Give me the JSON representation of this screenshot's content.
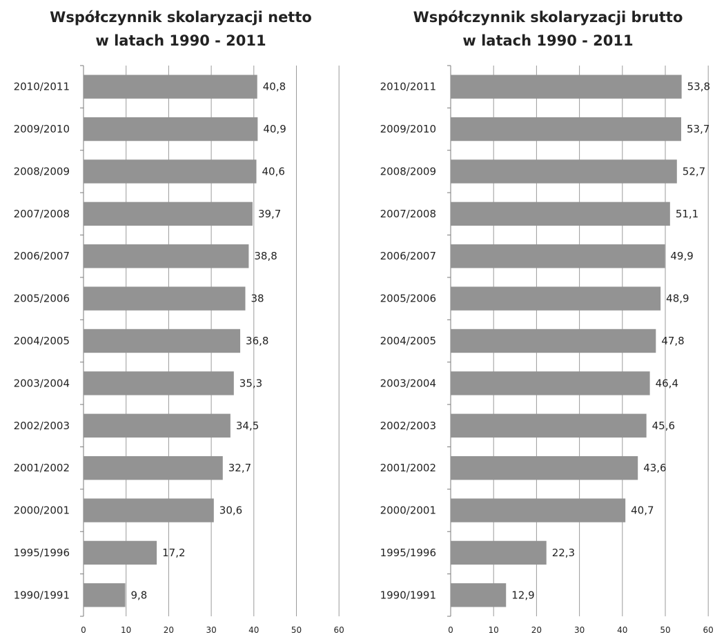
{
  "colors": {
    "bar": "#939393",
    "grid": "#9a9a9a",
    "axis": "#7a7a7a",
    "text": "#222222"
  },
  "chart_data": [
    {
      "type": "bar",
      "orientation": "horizontal",
      "title_lines": [
        "Współczynnik skolaryzacji netto",
        "w latach 1990 - 2011"
      ],
      "categories": [
        "2010/2011",
        "2009/2010",
        "2008/2009",
        "2007/2008",
        "2006/2007",
        "2005/2006",
        "2004/2005",
        "2003/2004",
        "2002/2003",
        "2001/2002",
        "2000/2001",
        "1995/1996",
        "1990/1991"
      ],
      "values": [
        40.8,
        40.9,
        40.6,
        39.7,
        38.8,
        38,
        36.8,
        35.3,
        34.5,
        32.7,
        30.6,
        17.2,
        9.8
      ],
      "value_labels": [
        "40,8",
        "40,9",
        "40,6",
        "39,7",
        "38,8",
        "38",
        "36,8",
        "35,3",
        "34,5",
        "32,7",
        "30,6",
        "17,2",
        "9,8"
      ],
      "xlim": [
        0,
        60
      ],
      "xticks": [
        0,
        10,
        20,
        30,
        40,
        50,
        60
      ],
      "grid": true,
      "legend": "none"
    },
    {
      "type": "bar",
      "orientation": "horizontal",
      "title_lines": [
        "Współczynnik skolaryzacji brutto",
        "w latach 1990 - 2011"
      ],
      "categories": [
        "2010/2011",
        "2009/2010",
        "2008/2009",
        "2007/2008",
        "2006/2007",
        "2005/2006",
        "2004/2005",
        "2003/2004",
        "2002/2003",
        "2001/2002",
        "2000/2001",
        "1995/1996",
        "1990/1991"
      ],
      "values": [
        53.8,
        53.7,
        52.7,
        51.1,
        49.9,
        48.9,
        47.8,
        46.4,
        45.6,
        43.6,
        40.7,
        22.3,
        12.9
      ],
      "value_labels": [
        "53,8",
        "53,7",
        "52,7",
        "51,1",
        "49,9",
        "48,9",
        "47,8",
        "46,4",
        "45,6",
        "43,6",
        "40,7",
        "22,3",
        "12,9"
      ],
      "xlim": [
        0,
        60
      ],
      "xticks": [
        0,
        10,
        20,
        30,
        40,
        50,
        60
      ],
      "grid": true,
      "legend": "none"
    }
  ]
}
